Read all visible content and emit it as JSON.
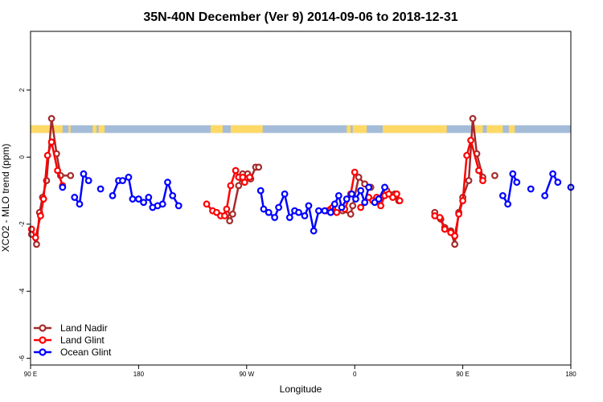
{
  "chart_data": {
    "type": "line",
    "title": "35N-40N December (Ver 9)   2014-09-06 to 2018-12-31",
    "xlabel": "Longitude",
    "ylabel": "XCO2 - MLO trend (ppm)",
    "xlim": [
      -90,
      180
    ],
    "ylim": [
      -6.2,
      3.75
    ],
    "x_ticks": [
      {
        "x": -90,
        "label": "90 E"
      },
      {
        "x": -36,
        "label": "180"
      },
      {
        "x": 18,
        "label": "90 W"
      },
      {
        "x": 72,
        "label": "0"
      },
      {
        "x": 126,
        "label": "90 E"
      },
      {
        "x": 180,
        "label": "180"
      }
    ],
    "y_ticks": [
      {
        "y": 2,
        "label": "2"
      },
      {
        "y": 0,
        "label": "0"
      },
      {
        "y": -2,
        "label": "-2"
      },
      {
        "y": -4,
        "label": "-4"
      },
      {
        "y": -6,
        "label": "-6"
      }
    ],
    "colors": {
      "land_nadir": "#a52a2a",
      "land_glint": "#ff0000",
      "ocean_glint": "#0000ff",
      "map_land": "#ffd966",
      "map_ocean": "#a4bcd8"
    },
    "land_mask": [
      [
        -90,
        -74
      ],
      [
        -71,
        -70
      ],
      [
        -59,
        -57
      ],
      [
        -56,
        -53
      ],
      [
        0,
        6
      ],
      [
        10,
        26
      ],
      [
        68,
        70
      ],
      [
        71,
        78
      ],
      [
        86,
        118
      ],
      [
        132,
        136
      ],
      [
        138,
        146
      ],
      [
        149,
        152
      ]
    ],
    "series": [
      {
        "key": "land_nadir",
        "name": "Land Nadir",
        "segments": [
          [
            [
              -89.5,
              -2.3
            ],
            [
              -87,
              -2.6
            ],
            [
              -85.5,
              -1.65
            ],
            [
              -84,
              -1.2
            ],
            [
              -82,
              -0.7
            ],
            [
              -79.5,
              1.15
            ],
            [
              -77,
              0.1
            ],
            [
              -75,
              -0.55
            ],
            [
              -70,
              -0.55
            ]
          ],
          [
            [
              8,
              -1.7
            ],
            [
              9.5,
              -1.9
            ],
            [
              11,
              -1.7
            ],
            [
              14,
              -0.85
            ],
            [
              16,
              -0.5
            ],
            [
              18.5,
              -0.5
            ],
            [
              20,
              -0.65
            ],
            [
              22.5,
              -0.3
            ],
            [
              24,
              -0.3
            ]
          ],
          [
            [
              66,
              -1.6
            ],
            [
              70,
              -1.7
            ],
            [
              71,
              -1.45
            ],
            [
              74,
              -0.6
            ],
            [
              77,
              -0.8
            ],
            [
              80,
              -0.9
            ]
          ],
          [
            [
              88,
              -1.0
            ],
            [
              92,
              -1.1
            ],
            [
              94,
              -1.3
            ]
          ],
          [
            [
              112,
              -1.65
            ],
            [
              115,
              -1.85
            ],
            [
              117,
              -2.1
            ],
            [
              120,
              -2.2
            ],
            [
              122,
              -2.6
            ],
            [
              124,
              -1.65
            ],
            [
              126,
              -1.2
            ],
            [
              129,
              -0.7
            ],
            [
              131,
              1.15
            ],
            [
              133,
              0.1
            ],
            [
              136,
              -0.6
            ]
          ],
          [
            [
              142,
              -0.55
            ]
          ]
        ]
      },
      {
        "key": "land_glint",
        "name": "Land Glint",
        "segments": [
          [
            [
              -89.5,
              -2.15
            ],
            [
              -87.5,
              -2.4
            ],
            [
              -85,
              -1.75
            ],
            [
              -83.5,
              -1.25
            ],
            [
              -81.5,
              0.05
            ],
            [
              -79.5,
              0.45
            ],
            [
              -76.5,
              -0.4
            ],
            [
              -74,
              -0.85
            ]
          ],
          [
            [
              -2,
              -1.4
            ],
            [
              1,
              -1.6
            ],
            [
              3,
              -1.65
            ],
            [
              5,
              -1.75
            ],
            [
              7,
              -1.75
            ],
            [
              8,
              -1.55
            ],
            [
              10,
              -0.85
            ],
            [
              12.5,
              -0.4
            ],
            [
              14,
              -0.6
            ],
            [
              16,
              -0.6
            ],
            [
              17,
              -0.75
            ],
            [
              19.5,
              -0.6
            ]
          ],
          [
            [
              58,
              -1.6
            ],
            [
              60,
              -1.55
            ],
            [
              61,
              -1.5
            ],
            [
              63,
              -1.65
            ]
          ],
          [
            [
              67,
              -1.55
            ],
            [
              70,
              -1.1
            ],
            [
              72,
              -0.45
            ]
          ],
          [
            [
              75,
              -1.5
            ]
          ],
          [
            [
              79,
              -1.2
            ],
            [
              81,
              -1.3
            ],
            [
              83,
              -1.2
            ],
            [
              85,
              -1.45
            ],
            [
              87,
              -1.15
            ],
            [
              89,
              -1.1
            ],
            [
              91,
              -1.2
            ],
            [
              93,
              -1.1
            ],
            [
              94.5,
              -1.3
            ]
          ],
          [
            [
              112,
              -1.75
            ],
            [
              114.5,
              -1.8
            ],
            [
              117,
              -2.15
            ],
            [
              120,
              -2.25
            ],
            [
              122,
              -2.35
            ],
            [
              124,
              -1.7
            ],
            [
              126,
              -1.3
            ],
            [
              128,
              0.05
            ],
            [
              130,
              0.5
            ],
            [
              134,
              -0.4
            ],
            [
              136,
              -0.7
            ]
          ]
        ]
      },
      {
        "key": "ocean_glint",
        "name": "Ocean Glint",
        "segments": [
          [
            [
              -74,
              -0.9
            ]
          ],
          [
            [
              -68,
              -1.2
            ],
            [
              -65.5,
              -1.4
            ],
            [
              -63.5,
              -0.5
            ],
            [
              -61,
              -0.7
            ]
          ],
          [
            [
              -55,
              -0.95
            ]
          ],
          [
            [
              -49,
              -1.15
            ],
            [
              -46,
              -0.7
            ],
            [
              -44,
              -0.7
            ],
            [
              -41,
              -0.6
            ],
            [
              -39,
              -1.25
            ],
            [
              -36,
              -1.25
            ],
            [
              -33.5,
              -1.35
            ],
            [
              -31,
              -1.2
            ],
            [
              -29,
              -1.5
            ],
            [
              -26.5,
              -1.45
            ],
            [
              -24,
              -1.4
            ],
            [
              -21.5,
              -0.75
            ],
            [
              -19,
              -1.15
            ],
            [
              -16,
              -1.45
            ]
          ],
          [
            [
              25,
              -1.0
            ],
            [
              26.5,
              -1.55
            ],
            [
              29,
              -1.65
            ],
            [
              32,
              -1.8
            ],
            [
              34,
              -1.5
            ],
            [
              37,
              -1.1
            ],
            [
              39.5,
              -1.8
            ],
            [
              42,
              -1.6
            ],
            [
              44,
              -1.65
            ],
            [
              47,
              -1.75
            ],
            [
              49,
              -1.45
            ],
            [
              51.5,
              -2.2
            ],
            [
              54,
              -1.6
            ],
            [
              57,
              -1.6
            ],
            [
              60,
              -1.65
            ],
            [
              62,
              -1.4
            ],
            [
              64,
              -1.15
            ],
            [
              65.5,
              -1.5
            ],
            [
              68,
              -1.25
            ],
            [
              70.5,
              -1.1
            ],
            [
              72.5,
              -1.25
            ],
            [
              75,
              -1.0
            ],
            [
              77,
              -1.35
            ],
            [
              79,
              -0.9
            ]
          ],
          [
            [
              82,
              -1.35
            ],
            [
              84,
              -1.25
            ],
            [
              87,
              -0.9
            ]
          ],
          [
            [
              146,
              -1.15
            ],
            [
              148.5,
              -1.4
            ],
            [
              151,
              -0.5
            ],
            [
              153,
              -0.75
            ]
          ],
          [
            [
              160,
              -0.95
            ]
          ],
          [
            [
              167,
              -1.15
            ],
            [
              171,
              -0.5
            ],
            [
              173.5,
              -0.75
            ]
          ],
          [
            [
              180,
              -0.9
            ]
          ]
        ]
      }
    ],
    "legend": {
      "position": "bottom-left",
      "entries": [
        "Land Nadir",
        "Land Glint",
        "Ocean Glint"
      ]
    }
  }
}
